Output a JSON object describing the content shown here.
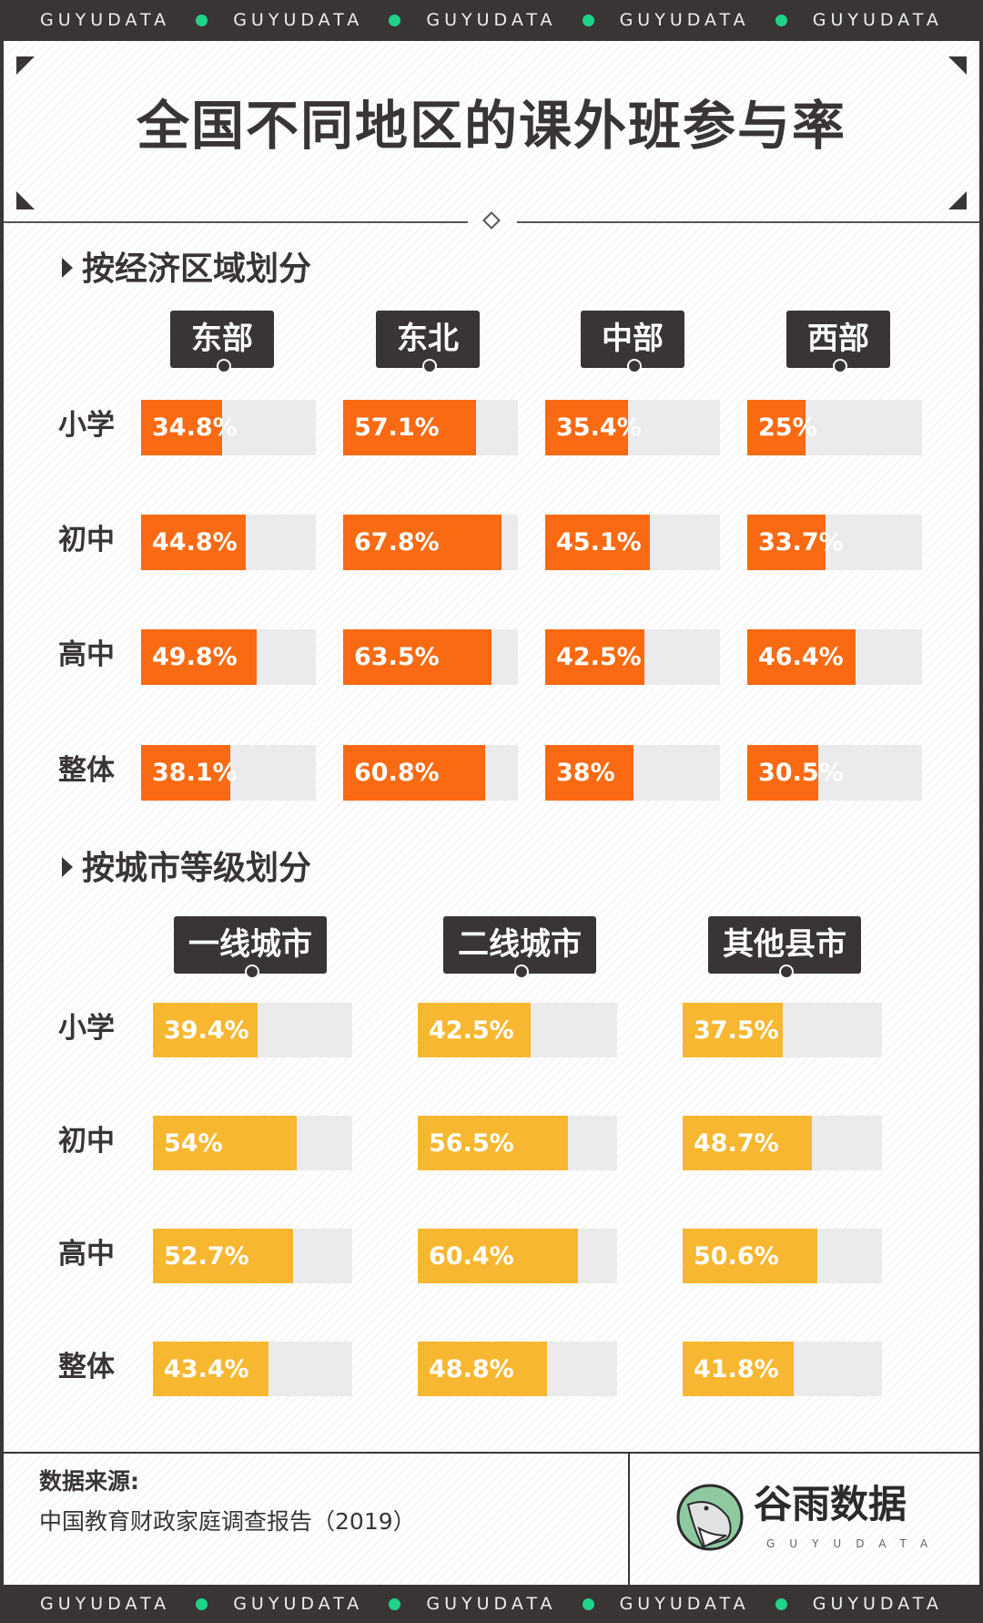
{
  "banner": {
    "text": "GUYUDATA",
    "repeat": 5
  },
  "title": "全国不同地区的课外班参与率",
  "colors": {
    "orange": "#f96a12",
    "yellow": "#f8b730",
    "track": "#ebebed",
    "dark": "#3a3535",
    "accent_dot": "#1ed38a"
  },
  "chart_data": [
    {
      "type": "bar",
      "title": "按经济区域划分",
      "categories": [
        "小学",
        "初中",
        "高中",
        "整体"
      ],
      "unit": "%",
      "bar_max": 75,
      "series": [
        {
          "name": "东部",
          "values": [
            34.8,
            44.8,
            49.8,
            38.1
          ]
        },
        {
          "name": "东北",
          "values": [
            57.1,
            67.8,
            63.5,
            60.8
          ]
        },
        {
          "name": "中部",
          "values": [
            35.4,
            45.1,
            42.5,
            38
          ]
        },
        {
          "name": "西部",
          "values": [
            25,
            33.7,
            46.4,
            30.5
          ]
        }
      ]
    },
    {
      "type": "bar",
      "title": "按城市等级划分",
      "categories": [
        "小学",
        "初中",
        "高中",
        "整体"
      ],
      "unit": "%",
      "bar_max": 75,
      "series": [
        {
          "name": "一线城市",
          "values": [
            39.4,
            54,
            52.7,
            43.4
          ]
        },
        {
          "name": "二线城市",
          "values": [
            42.5,
            56.5,
            60.4,
            48.8
          ]
        },
        {
          "name": "其他县市",
          "values": [
            37.5,
            48.7,
            50.6,
            41.8
          ]
        }
      ]
    }
  ],
  "footer": {
    "source_label": "数据来源:",
    "source": "中国教育财政家庭调查报告（2019）",
    "logo_cn": "谷雨数据",
    "logo_en": "GUYUDATA"
  }
}
